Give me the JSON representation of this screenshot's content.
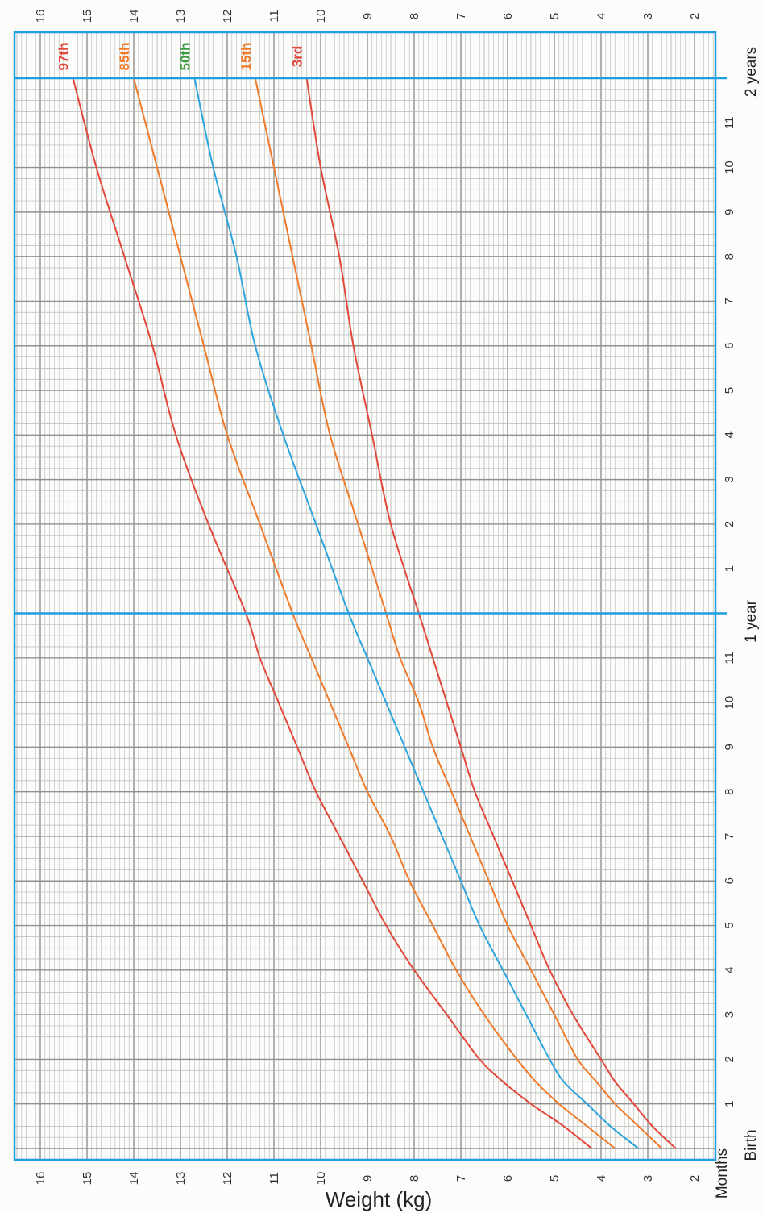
{
  "chart_data": {
    "type": "line",
    "ylabel": "Weight (kg)",
    "ylim": [
      1.5,
      16.5
    ],
    "xlim": [
      0,
      24
    ],
    "y_ticks": [
      2,
      3,
      4,
      5,
      6,
      7,
      8,
      9,
      10,
      11,
      12,
      13,
      14,
      15,
      16
    ],
    "x_ticks": [
      {
        "month": 0,
        "label": "Birth"
      },
      {
        "month": 1,
        "label": "1"
      },
      {
        "month": 2,
        "label": "2"
      },
      {
        "month": 3,
        "label": "3"
      },
      {
        "month": 4,
        "label": "4"
      },
      {
        "month": 5,
        "label": "5"
      },
      {
        "month": 6,
        "label": "6"
      },
      {
        "month": 7,
        "label": "7"
      },
      {
        "month": 8,
        "label": "8"
      },
      {
        "month": 9,
        "label": "9"
      },
      {
        "month": 10,
        "label": "10"
      },
      {
        "month": 11,
        "label": "11"
      },
      {
        "month": 12,
        "label": "1 year"
      },
      {
        "month": 13,
        "label": "1"
      },
      {
        "month": 14,
        "label": "2"
      },
      {
        "month": 15,
        "label": "3"
      },
      {
        "month": 16,
        "label": "4"
      },
      {
        "month": 17,
        "label": "5"
      },
      {
        "month": 18,
        "label": "6"
      },
      {
        "month": 19,
        "label": "7"
      },
      {
        "month": 20,
        "label": "8"
      },
      {
        "month": 21,
        "label": "9"
      },
      {
        "month": 22,
        "label": "10"
      },
      {
        "month": 23,
        "label": "11"
      },
      {
        "month": 24,
        "label": "2 years"
      }
    ],
    "x_axis_caption": "Months",
    "months": [
      0,
      0.5,
      1,
      1.5,
      2,
      3,
      4,
      5,
      6,
      7,
      8,
      9,
      10,
      11,
      12,
      14,
      16,
      18,
      20,
      22,
      24
    ],
    "series": [
      {
        "name": "97th",
        "color": "#e2473a",
        "values": [
          4.2,
          4.8,
          5.5,
          6.1,
          6.6,
          7.3,
          8.0,
          8.6,
          9.1,
          9.6,
          10.1,
          10.5,
          10.9,
          11.3,
          11.6,
          12.4,
          13.1,
          13.6,
          14.2,
          14.8,
          15.3
        ]
      },
      {
        "name": "85th",
        "color": "#f07a2a",
        "values": [
          3.7,
          4.3,
          4.9,
          5.4,
          5.8,
          6.5,
          7.1,
          7.6,
          8.1,
          8.5,
          9.0,
          9.4,
          9.8,
          10.2,
          10.6,
          11.3,
          12.0,
          12.5,
          13.0,
          13.5,
          14.0
        ]
      },
      {
        "name": "50th",
        "color": "#2aa5df",
        "values": [
          3.2,
          3.8,
          4.3,
          4.8,
          5.1,
          5.6,
          6.1,
          6.6,
          7.0,
          7.4,
          7.8,
          8.2,
          8.6,
          9.0,
          9.4,
          10.1,
          10.8,
          11.4,
          11.8,
          12.3,
          12.7
        ]
      },
      {
        "name": "15th",
        "color": "#f07a2a",
        "values": [
          2.7,
          3.2,
          3.7,
          4.1,
          4.5,
          5.0,
          5.5,
          6.0,
          6.4,
          6.8,
          7.2,
          7.6,
          7.9,
          8.3,
          8.6,
          9.2,
          9.8,
          10.2,
          10.6,
          11.0,
          11.4
        ]
      },
      {
        "name": "3rd",
        "color": "#e2473a",
        "values": [
          2.4,
          2.9,
          3.3,
          3.7,
          4.0,
          4.6,
          5.1,
          5.5,
          5.9,
          6.3,
          6.7,
          7.0,
          7.3,
          7.6,
          7.9,
          8.5,
          8.9,
          9.3,
          9.6,
          10.0,
          10.3
        ]
      }
    ],
    "series_label_colors": [
      "#e2473a",
      "#f07a2a",
      "#3a9a3e",
      "#f07a2a",
      "#e2473a"
    ],
    "grid": true
  },
  "colors": {
    "frame": "#1f9fe0",
    "grid": "#909090",
    "minor_grid": "#b8b8b8"
  }
}
